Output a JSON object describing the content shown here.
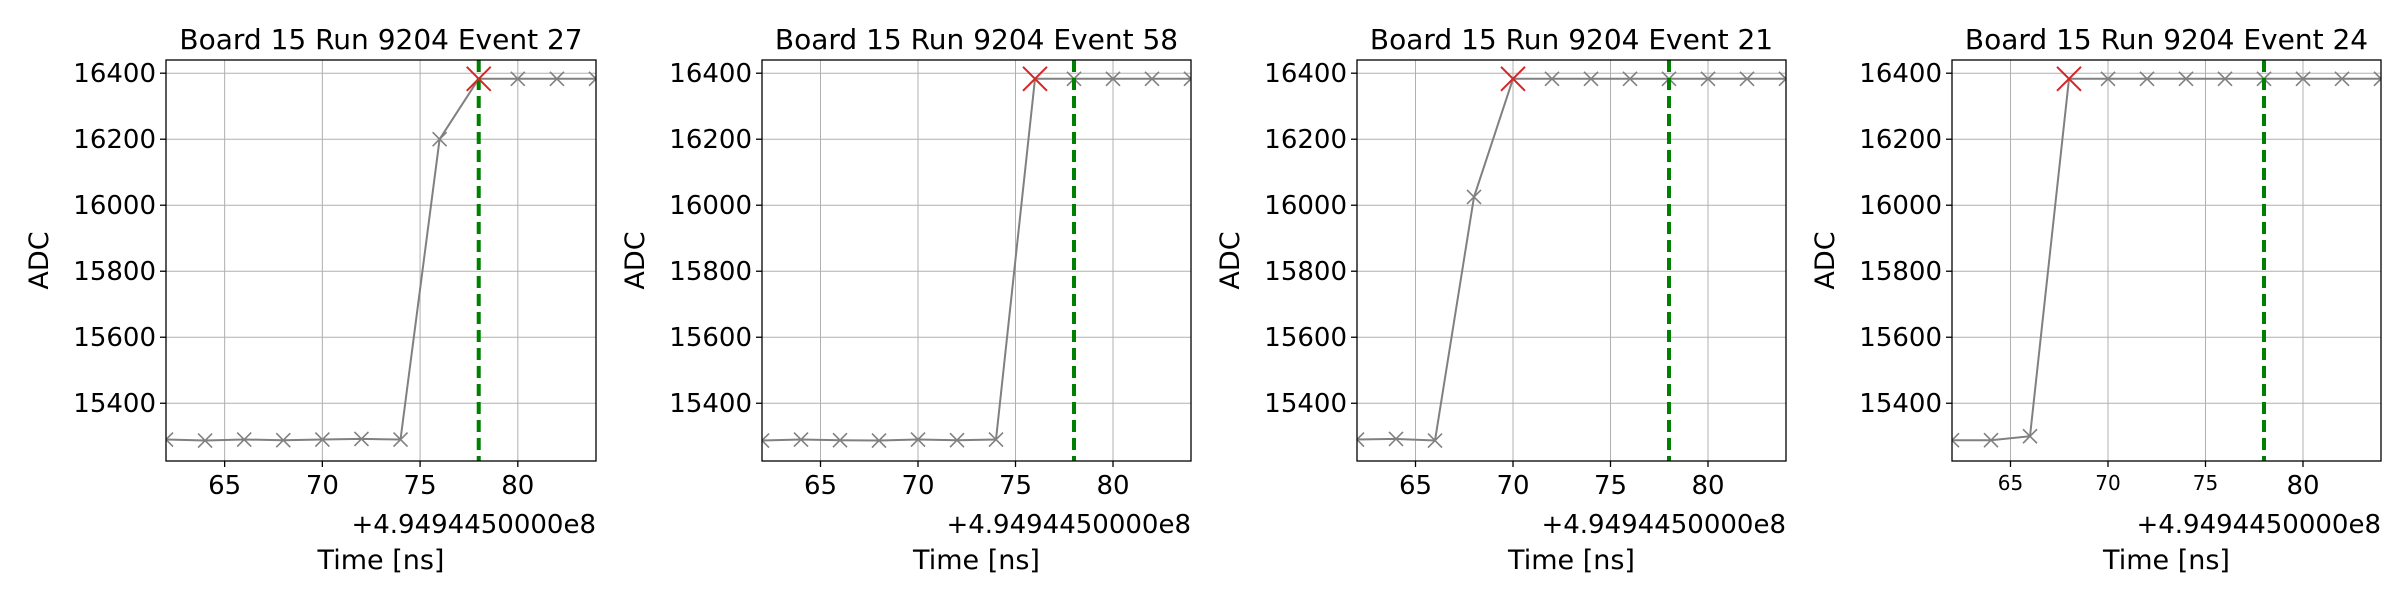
{
  "chart_data": [
    {
      "type": "line",
      "title": "Board 15 Run 9204 Event 27",
      "xlabel": "Time [ns]",
      "ylabel": "ADC",
      "x_offset_label": "+4.9494450000e8",
      "xlim": [
        62,
        84
      ],
      "ylim": [
        15225,
        16440
      ],
      "xticks": [
        65,
        70,
        75,
        80
      ],
      "yticks": [
        15400,
        15600,
        15800,
        16000,
        16200,
        16400
      ],
      "xtick_font": "large",
      "grid": true,
      "series": [
        {
          "x": [
            62,
            64,
            66,
            68,
            70,
            72,
            74,
            76,
            78,
            80,
            82,
            84
          ],
          "y": [
            15290,
            15287,
            15290,
            15288,
            15290,
            15292,
            15290,
            16200,
            16383,
            16383,
            16383,
            16383
          ],
          "color": "#808080",
          "marker": "x"
        }
      ],
      "peak": {
        "x": 78,
        "y": 16383,
        "color": "#d62728",
        "marker": "x"
      },
      "vline": {
        "x": 78,
        "color": "#008000",
        "style": "dashed"
      }
    },
    {
      "type": "line",
      "title": "Board 15 Run 9204 Event 58",
      "xlabel": "Time [ns]",
      "ylabel": "ADC",
      "x_offset_label": "+4.9494450000e8",
      "xlim": [
        62,
        84
      ],
      "ylim": [
        15225,
        16440
      ],
      "xticks": [
        65,
        70,
        75,
        80
      ],
      "yticks": [
        15400,
        15600,
        15800,
        16000,
        16200,
        16400
      ],
      "xtick_font": "large",
      "grid": true,
      "series": [
        {
          "x": [
            62,
            64,
            66,
            68,
            70,
            72,
            74,
            76,
            78,
            80,
            82,
            84
          ],
          "y": [
            15287,
            15290,
            15288,
            15287,
            15290,
            15288,
            15290,
            16383,
            16383,
            16383,
            16383,
            16383
          ],
          "color": "#808080",
          "marker": "x"
        }
      ],
      "peak": {
        "x": 76,
        "y": 16383,
        "color": "#d62728",
        "marker": "x"
      },
      "vline": {
        "x": 78,
        "color": "#008000",
        "style": "dashed"
      }
    },
    {
      "type": "line",
      "title": "Board 15 Run 9204 Event 21",
      "xlabel": "Time [ns]",
      "ylabel": "ADC",
      "x_offset_label": "+4.9494450000e8",
      "xlim": [
        62,
        84
      ],
      "ylim": [
        15225,
        16440
      ],
      "xticks": [
        65,
        70,
        75,
        80
      ],
      "yticks": [
        15400,
        15600,
        15800,
        16000,
        16200,
        16400
      ],
      "xtick_font": "large",
      "grid": true,
      "series": [
        {
          "x": [
            62,
            64,
            66,
            68,
            70,
            72,
            74,
            76,
            78,
            80,
            82,
            84
          ],
          "y": [
            15290,
            15292,
            15287,
            16025,
            16383,
            16383,
            16383,
            16383,
            16383,
            16383,
            16383,
            16383
          ],
          "color": "#808080",
          "marker": "x"
        }
      ],
      "peak": {
        "x": 70,
        "y": 16383,
        "color": "#d62728",
        "marker": "x"
      },
      "vline": {
        "x": 78,
        "color": "#008000",
        "style": "dashed"
      }
    },
    {
      "type": "line",
      "title": "Board 15 Run 9204 Event 24",
      "xlabel": "Time [ns]",
      "ylabel": "ADC",
      "x_offset_label": "+4.9494450000e8",
      "xlim": [
        62,
        84
      ],
      "ylim": [
        15225,
        16440
      ],
      "xticks": [
        65,
        70,
        75,
        80
      ],
      "yticks": [
        15400,
        15600,
        15800,
        16000,
        16200,
        16400
      ],
      "xtick_font": "mixed",
      "grid": true,
      "series": [
        {
          "x": [
            62,
            64,
            66,
            68,
            70,
            72,
            74,
            76,
            78,
            80,
            82,
            84
          ],
          "y": [
            15288,
            15288,
            15300,
            16383,
            16383,
            16383,
            16383,
            16383,
            16383,
            16383,
            16383,
            16383
          ],
          "color": "#808080",
          "marker": "x"
        }
      ],
      "peak": {
        "x": 68,
        "y": 16383,
        "color": "#d62728",
        "marker": "x"
      },
      "vline": {
        "x": 78,
        "color": "#008000",
        "style": "dashed"
      }
    }
  ]
}
